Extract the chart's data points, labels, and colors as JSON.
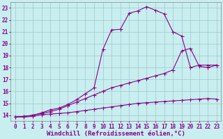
{
  "xlabel": "Windchill (Refroidissement éolien,°C)",
  "bg_color": "#c8eef0",
  "line_color": "#880088",
  "grid_color": "#a0c8c8",
  "xlim": [
    -0.5,
    23.5
  ],
  "ylim": [
    13.5,
    23.5
  ],
  "xticks": [
    0,
    1,
    2,
    3,
    4,
    5,
    6,
    7,
    8,
    9,
    10,
    11,
    12,
    13,
    14,
    15,
    16,
    17,
    18,
    19,
    20,
    21,
    22,
    23
  ],
  "yticks": [
    14,
    15,
    16,
    17,
    18,
    19,
    20,
    21,
    22,
    23
  ],
  "curve1_x": [
    0,
    1,
    2,
    3,
    4,
    5,
    6,
    7,
    8,
    9,
    10,
    11,
    12,
    13,
    14,
    15,
    16,
    17,
    18,
    19,
    20,
    21,
    22,
    23
  ],
  "curve1_y": [
    13.85,
    13.85,
    13.9,
    14.05,
    14.1,
    14.15,
    14.2,
    14.3,
    14.4,
    14.5,
    14.6,
    14.7,
    14.8,
    14.9,
    15.0,
    15.05,
    15.1,
    15.15,
    15.2,
    15.25,
    15.3,
    15.35,
    15.4,
    15.35
  ],
  "curve2_x": [
    0,
    1,
    2,
    3,
    4,
    5,
    6,
    7,
    8,
    9,
    10,
    11,
    12,
    13,
    14,
    15,
    16,
    17,
    18,
    19,
    20,
    21,
    22,
    23
  ],
  "curve2_y": [
    13.85,
    13.9,
    14.0,
    14.15,
    14.3,
    14.5,
    14.8,
    15.1,
    15.4,
    15.7,
    16.0,
    16.3,
    16.5,
    16.7,
    16.9,
    17.1,
    17.3,
    17.5,
    17.8,
    19.4,
    19.6,
    18.1,
    18.0,
    18.2
  ],
  "curve3_x": [
    0,
    1,
    2,
    3,
    4,
    5,
    6,
    7,
    8,
    9,
    10,
    11,
    12,
    13,
    14,
    15,
    16,
    17,
    18,
    19,
    20,
    21,
    22,
    23
  ],
  "curve3_y": [
    13.85,
    13.9,
    14.0,
    14.2,
    14.45,
    14.6,
    14.9,
    15.3,
    15.8,
    16.3,
    19.5,
    21.15,
    21.2,
    22.55,
    22.75,
    23.1,
    22.8,
    22.5,
    21.0,
    20.65,
    18.0,
    18.2,
    18.2,
    18.2
  ],
  "xlabel_fontsize": 6.5,
  "tick_fontsize": 5.5,
  "marker": "D",
  "marker_size": 1.8,
  "linewidth": 0.8
}
